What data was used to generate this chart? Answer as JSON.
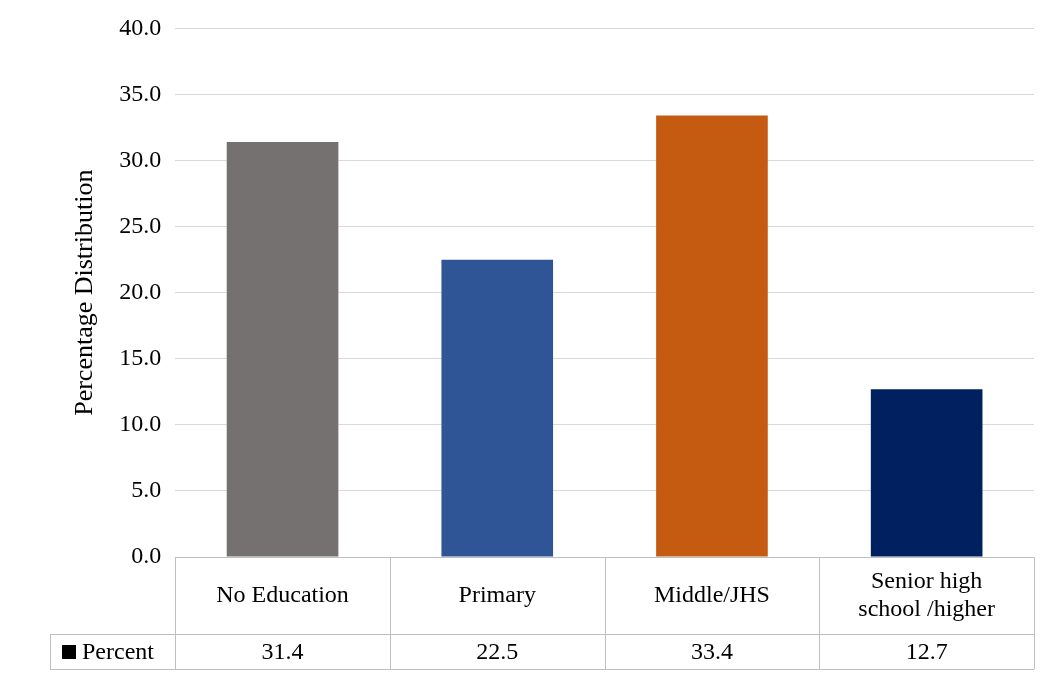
{
  "chart_data": {
    "type": "bar",
    "ylabel": "Percentage Distribution",
    "categories": [
      "No Education",
      "Primary",
      "Middle/JHS",
      "Senior high school /higher"
    ],
    "series": [
      {
        "name": "Percent",
        "colors": [
          "#767171",
          "#2f5597",
          "#c55a11",
          "#002060"
        ],
        "values": [
          31.4,
          22.5,
          33.4,
          12.7
        ]
      }
    ],
    "ylim": [
      0,
      40
    ],
    "yticks": [
      {
        "value": 0,
        "label": "0.0"
      },
      {
        "value": 5,
        "label": "5.0"
      },
      {
        "value": 10,
        "label": "10.0"
      },
      {
        "value": 15,
        "label": "15.0"
      },
      {
        "value": 20,
        "label": "20.0"
      },
      {
        "value": 25,
        "label": "25.0"
      },
      {
        "value": 30,
        "label": "30.0"
      },
      {
        "value": 35,
        "label": "35.0"
      },
      {
        "value": 40,
        "label": "40.0"
      }
    ],
    "grid": "y",
    "data_labels": true,
    "legend": "bottom left"
  }
}
